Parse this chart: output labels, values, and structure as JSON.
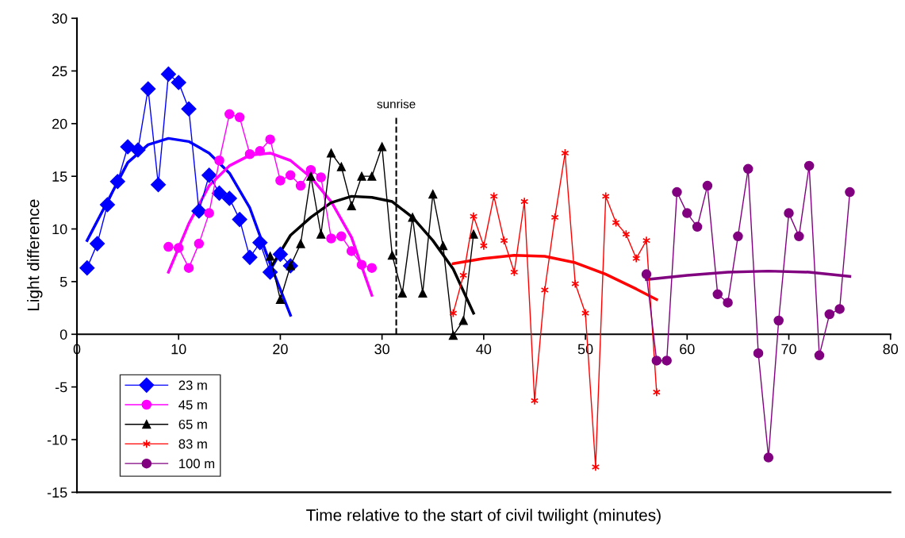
{
  "chart_data": {
    "type": "line",
    "xlabel": "Time relative to the start of civil twilight (minutes)",
    "ylabel": "Light difference",
    "xlim": [
      0,
      80
    ],
    "xticks": [
      0,
      10,
      20,
      30,
      40,
      50,
      60,
      70,
      80
    ],
    "ylim": [
      -15,
      30
    ],
    "yticks": [
      -15,
      -10,
      -5,
      0,
      5,
      10,
      15,
      20,
      25,
      30
    ],
    "grid": false,
    "legend": "bottom left",
    "ref_lines": [
      {
        "axis": "x",
        "value": 31.4,
        "label": "sunrise",
        "color": "#000000",
        "line_style": "dashed"
      }
    ],
    "series": [
      {
        "name": "23 m",
        "color": "#0000ff",
        "marker": "diamond",
        "x": [
          1,
          2,
          3,
          4,
          5,
          6,
          7,
          8,
          9,
          10,
          11,
          12,
          13,
          14,
          15,
          16,
          17,
          18,
          19,
          20,
          21
        ],
        "values": [
          6.3,
          8.6,
          12.3,
          14.5,
          17.8,
          17.5,
          23.3,
          14.2,
          24.7,
          23.9,
          21.4,
          11.7,
          15.1,
          13.4,
          12.9,
          10.9,
          7.3,
          8.7,
          5.9,
          7.6,
          6.5
        ]
      },
      {
        "name": "45 m",
        "color": "#ff00ff",
        "marker": "circle",
        "x": [
          9,
          10,
          11,
          12,
          13,
          14,
          15,
          16,
          17,
          18,
          19,
          20,
          21,
          22,
          23,
          24,
          25,
          26,
          27,
          28,
          29
        ],
        "values": [
          8.3,
          8.2,
          6.3,
          8.6,
          11.5,
          16.5,
          20.9,
          20.6,
          17.1,
          17.4,
          18.5,
          14.6,
          15.1,
          14.1,
          15.6,
          14.9,
          9.1,
          9.3,
          7.9,
          6.6,
          6.3
        ]
      },
      {
        "name": "65 m",
        "color": "#000000",
        "marker": "triangle",
        "x": [
          19,
          20,
          21,
          22,
          23,
          24,
          25,
          26,
          27,
          28,
          29,
          30,
          31,
          32,
          33,
          34,
          35,
          36,
          37,
          38,
          39
        ],
        "values": [
          7.4,
          3.3,
          6.5,
          8.6,
          15.0,
          9.5,
          17.2,
          15.9,
          12.2,
          15.0,
          15.0,
          17.8,
          7.5,
          3.9,
          11.1,
          3.9,
          13.3,
          8.4,
          -0.1,
          1.3,
          9.5
        ]
      },
      {
        "name": "83 m",
        "color": "#ff0000",
        "marker": "cross",
        "x": [
          37,
          38,
          39,
          40,
          41,
          42,
          43,
          44,
          45,
          46,
          47,
          48,
          49,
          50,
          51,
          52,
          53,
          54,
          55,
          56,
          57
        ],
        "values": [
          2.0,
          5.6,
          11.2,
          8.4,
          13.1,
          8.9,
          5.9,
          12.6,
          -6.3,
          4.2,
          11.1,
          17.2,
          4.8,
          2.0,
          -12.6,
          13.1,
          10.6,
          9.5,
          7.2,
          8.9,
          -5.5
        ]
      },
      {
        "name": "100 m",
        "color": "#800080",
        "marker": "circle",
        "x": [
          56,
          57,
          58,
          59,
          60,
          61,
          62,
          63,
          64,
          65,
          66,
          67,
          68,
          69,
          70,
          71,
          72,
          73,
          74,
          75,
          76
        ],
        "values": [
          5.7,
          -2.5,
          -2.5,
          13.5,
          11.5,
          10.2,
          14.1,
          3.8,
          3.0,
          9.3,
          15.7,
          -1.8,
          -11.7,
          1.3,
          11.5,
          9.3,
          16.0,
          -2.0,
          1.9,
          2.4,
          13.5
        ]
      },
      {
        "color": "#0000ff",
        "marker": "none",
        "x": [
          1,
          3,
          5,
          7,
          9,
          11,
          13,
          15,
          17,
          19,
          21
        ],
        "values": [
          8.9,
          12.6,
          16.3,
          18.0,
          18.6,
          18.3,
          17.2,
          15.3,
          12.0,
          6.7,
          1.8
        ]
      },
      {
        "color": "#ff00ff",
        "marker": "none",
        "x": [
          9,
          11,
          13,
          15,
          17,
          19,
          21,
          23,
          25,
          27,
          29
        ],
        "values": [
          5.9,
          10.5,
          14.1,
          16.0,
          17.0,
          17.2,
          16.5,
          14.9,
          12.6,
          9.2,
          3.7
        ]
      },
      {
        "color": "#000000",
        "marker": "none",
        "x": [
          19,
          21,
          23,
          25,
          27,
          29,
          31,
          33,
          35,
          37,
          39
        ],
        "values": [
          6.2,
          9.4,
          11.1,
          12.5,
          13.1,
          13.0,
          12.6,
          11.1,
          8.9,
          6.2,
          2.0
        ]
      },
      {
        "color": "#ff0000",
        "marker": "none",
        "x": [
          37,
          40,
          43,
          46,
          49,
          52,
          55,
          57
        ],
        "values": [
          6.7,
          7.2,
          7.5,
          7.4,
          6.8,
          5.7,
          4.3,
          3.3
        ]
      },
      {
        "color": "#800080",
        "marker": "none",
        "x": [
          56,
          60,
          64,
          68,
          72,
          76
        ],
        "values": [
          5.2,
          5.6,
          5.9,
          6.0,
          5.9,
          5.5
        ]
      }
    ]
  }
}
